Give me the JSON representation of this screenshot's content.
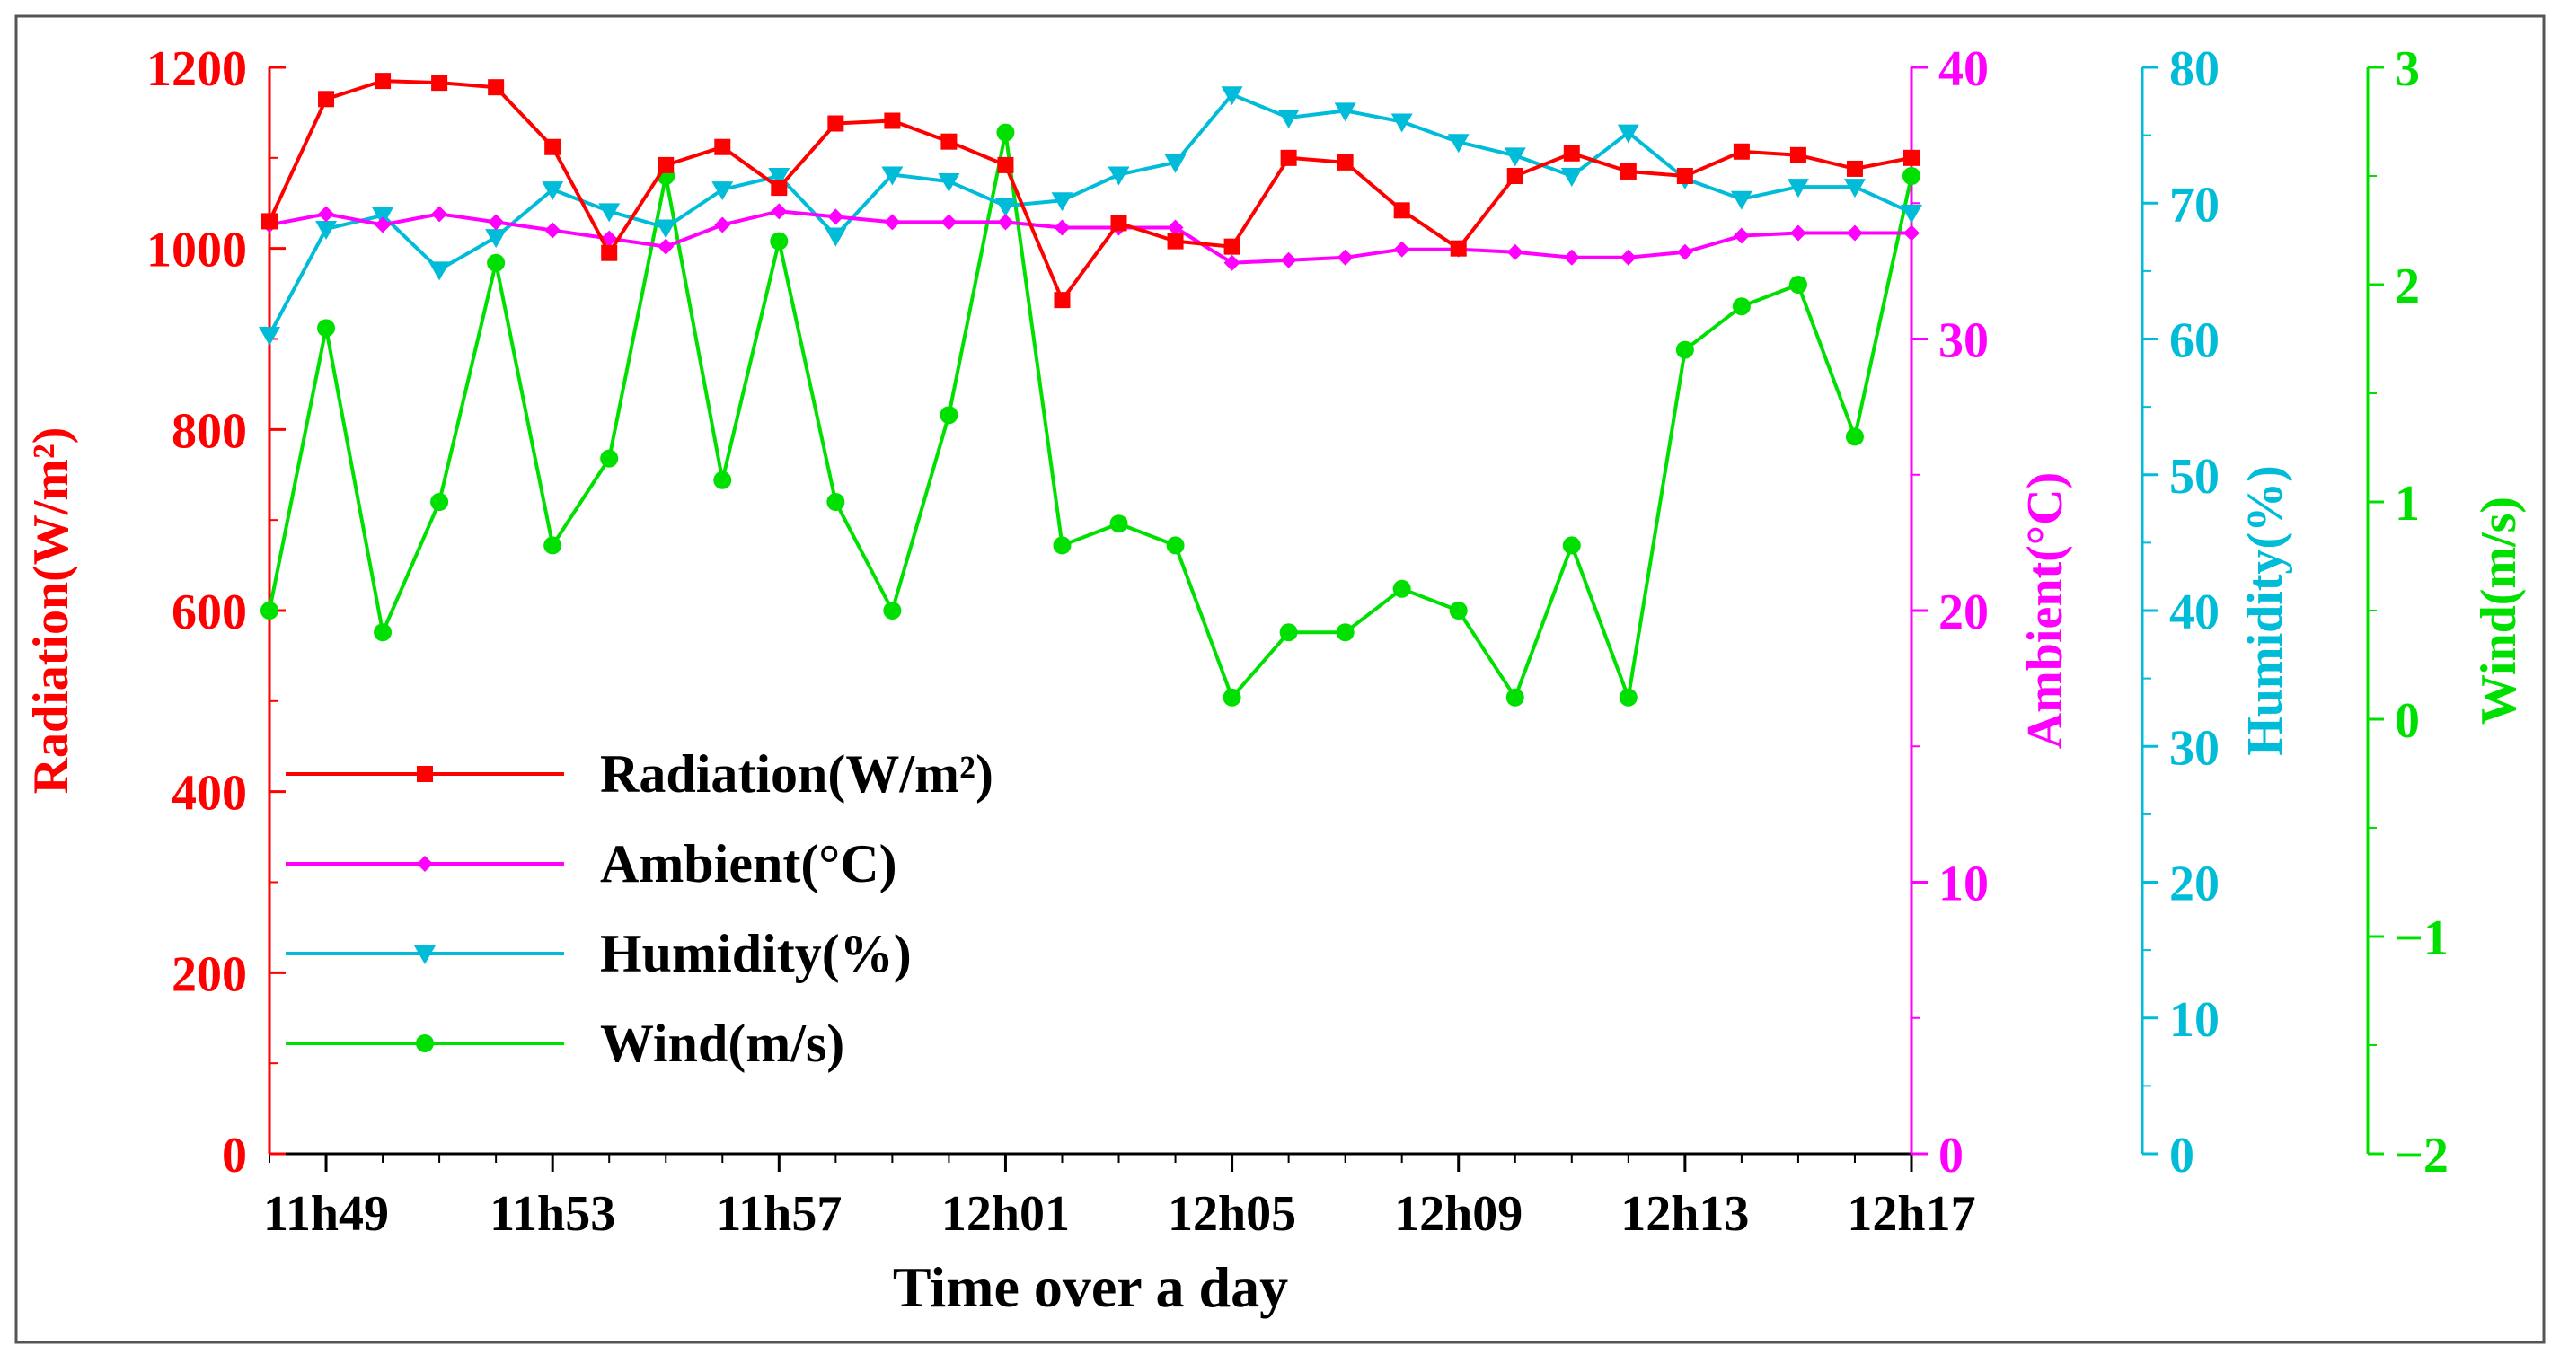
{
  "chart_data": {
    "type": "line",
    "xlabel": "Time over a day",
    "x": [
      "11h48",
      "11h49",
      "11h50",
      "11h51",
      "11h52",
      "11h53",
      "11h54",
      "11h55",
      "11h56",
      "11h57",
      "11h58",
      "11h59",
      "12h00",
      "12h01",
      "12h02",
      "12h03",
      "12h04",
      "12h05",
      "12h06",
      "12h07",
      "12h08",
      "12h09",
      "12h10",
      "12h11",
      "12h12",
      "12h13",
      "12h14",
      "12h15",
      "12h16",
      "12h17"
    ],
    "x_tick_labels": [
      "11h49",
      "11h53",
      "11h57",
      "12h01",
      "12h05",
      "12h09",
      "12h13",
      "12h17"
    ],
    "legend_position": "lower-left",
    "axes": [
      {
        "id": "radiation",
        "label": "Radiation(W/m²)",
        "color": "#ff0000",
        "ylim": [
          0,
          1200
        ],
        "ticks": [
          "0",
          "200",
          "400",
          "600",
          "800",
          "1000",
          "1200"
        ]
      },
      {
        "id": "ambient",
        "label": "Ambient(°C)",
        "color": "#ff00ff",
        "ylim": [
          0,
          40
        ],
        "ticks": [
          "0",
          "10",
          "20",
          "30",
          "40"
        ]
      },
      {
        "id": "humidity",
        "label": "Humidity(%)",
        "color": "#00bcd8",
        "ylim": [
          0,
          80
        ],
        "ticks": [
          "0",
          "10",
          "20",
          "30",
          "40",
          "50",
          "60",
          "70",
          "80"
        ]
      },
      {
        "id": "wind",
        "label": "Wind(m/s)",
        "color": "#00e000",
        "ylim": [
          -2,
          3
        ],
        "ticks": [
          "−2",
          "−1",
          "0",
          "1",
          "2",
          "3"
        ]
      }
    ],
    "series": [
      {
        "name": "Radiation(W/m²)",
        "axis": "radiation",
        "color": "#ff0000",
        "marker": "square",
        "values": [
          1030,
          1165,
          1185,
          1183,
          1178,
          1112,
          995,
          1092,
          1112,
          1067,
          1138,
          1141,
          1118,
          1092,
          943,
          1028,
          1008,
          1002,
          1100,
          1095,
          1042,
          1000,
          1080,
          1105,
          1085,
          1080,
          1107,
          1103,
          1088,
          1100
        ]
      },
      {
        "name": "Ambient(°C)",
        "axis": "ambient",
        "color": "#ff00ff",
        "marker": "diamond",
        "values": [
          34.2,
          34.6,
          34.2,
          34.6,
          34.3,
          34.0,
          33.7,
          33.4,
          34.2,
          34.7,
          34.5,
          34.3,
          34.3,
          34.3,
          34.1,
          34.1,
          34.1,
          32.8,
          32.9,
          33.0,
          33.3,
          33.3,
          33.2,
          33.0,
          33.0,
          33.2,
          33.8,
          33.9,
          33.9,
          33.9
        ]
      },
      {
        "name": "Humidity(%)",
        "axis": "humidity",
        "color": "#00bcd8",
        "marker": "triangle-down",
        "values": [
          60.3,
          68.1,
          69.1,
          65.1,
          67.5,
          71.0,
          69.4,
          68.2,
          71.0,
          72.0,
          67.6,
          72.1,
          71.6,
          69.8,
          70.2,
          72.1,
          73.0,
          78.0,
          76.3,
          76.8,
          76.0,
          74.5,
          73.5,
          72.0,
          75.2,
          71.8,
          70.3,
          71.2,
          71.2,
          69.3
        ]
      },
      {
        "name": "Wind(m/s)",
        "axis": "wind",
        "color": "#00e000",
        "marker": "circle",
        "values": [
          0.5,
          1.8,
          0.4,
          1.0,
          2.1,
          0.8,
          1.2,
          2.5,
          1.1,
          2.2,
          1.0,
          0.5,
          1.4,
          2.7,
          0.8,
          0.9,
          0.8,
          0.1,
          0.4,
          0.4,
          0.6,
          0.5,
          0.1,
          0.8,
          0.1,
          1.7,
          1.9,
          2.0,
          1.3,
          2.5
        ]
      }
    ]
  }
}
